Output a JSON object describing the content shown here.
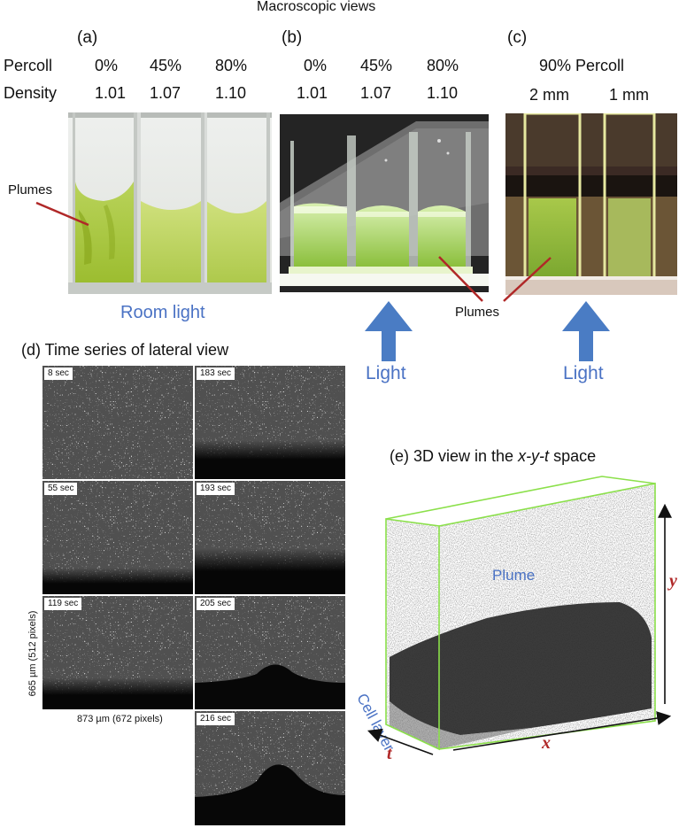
{
  "title": "Macroscopic views",
  "panel_a": {
    "label": "(a)",
    "row1_label": "Percoll",
    "row2_label": "Density",
    "percoll": [
      "0%",
      "45%",
      "80%"
    ],
    "density": [
      "1.01",
      "1.07",
      "1.10"
    ],
    "plumes_label": "Plumes",
    "caption": "Room light"
  },
  "panel_b": {
    "label": "(b)",
    "percoll": [
      "0%",
      "45%",
      "80%"
    ],
    "density": [
      "1.01",
      "1.07",
      "1.10"
    ],
    "light_label": "Light"
  },
  "panel_c": {
    "label": "(c)",
    "title": "90% Percoll",
    "widths": [
      "2 mm",
      "1 mm"
    ],
    "light_label": "Light"
  },
  "plumes_shared_label": "Plumes",
  "panel_d": {
    "title": "(d) Time series of lateral view",
    "frames_left": [
      "8 sec",
      "55 sec",
      "119 sec"
    ],
    "frames_right": [
      "183 sec",
      "193 sec",
      "205 sec",
      "216 sec"
    ],
    "height_label": "665 µm (512 pixels)",
    "width_label": "873 µm (672 pixels)"
  },
  "panel_e": {
    "title_prefix": "(e) 3D view in the ",
    "title_axes": "x-y-t",
    "title_suffix": " space",
    "plume_label": "Plume",
    "cell_layer_label": "Cell layer",
    "axis_x": "x",
    "axis_y": "y",
    "axis_t": "t"
  },
  "colors": {
    "caption_blue": "#4a72c4",
    "arrow_blue": "#4a7cc4",
    "plume_line": "#b02828",
    "box_green": "#8be04a",
    "axis_red": "#b02828"
  }
}
